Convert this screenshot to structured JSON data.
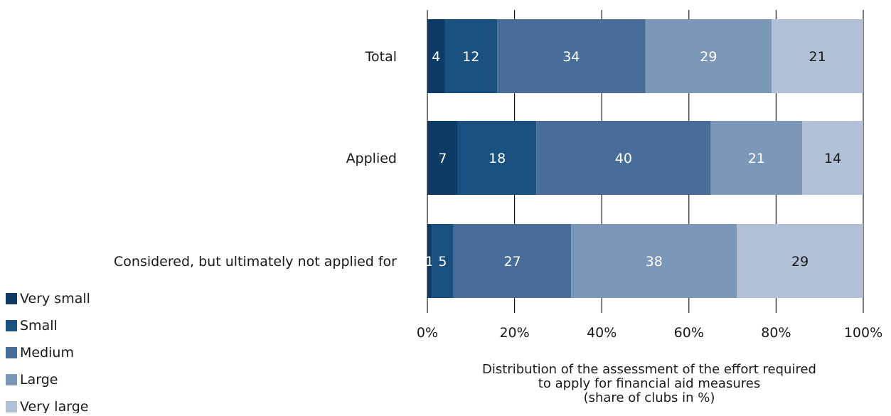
{
  "chart_data": {
    "type": "bar",
    "orientation": "horizontal",
    "stacked": true,
    "title": "",
    "categories": [
      "Total",
      "Applied",
      "Considered, but ultimately not applied for"
    ],
    "series": [
      {
        "name": "Very small",
        "values": [
          4,
          7,
          1
        ],
        "color": "#0e3a66",
        "label_color": "#ffffff"
      },
      {
        "name": "Small",
        "values": [
          12,
          18,
          5
        ],
        "color": "#1a5080",
        "label_color": "#ffffff"
      },
      {
        "name": "Medium",
        "values": [
          34,
          40,
          27
        ],
        "color": "#476d98",
        "label_color": "#ffffff"
      },
      {
        "name": "Large",
        "values": [
          29,
          21,
          38
        ],
        "color": "#7c98b8",
        "label_color": "#ffffff"
      },
      {
        "name": "Very large",
        "values": [
          21,
          14,
          29
        ],
        "color": "#b1c0d6",
        "label_color": "#1a1a1a"
      }
    ],
    "xlim": [
      0,
      100
    ],
    "x_ticks": [
      "0%",
      "20%",
      "40%",
      "60%",
      "80%",
      "100%"
    ],
    "xlabel": [
      "Distribution of the assessment of the effort required",
      "to apply  for financial aid measures",
      "(share of clubs in %)"
    ],
    "ylabel": "",
    "grid": true,
    "legend_position": "bottom-left"
  }
}
